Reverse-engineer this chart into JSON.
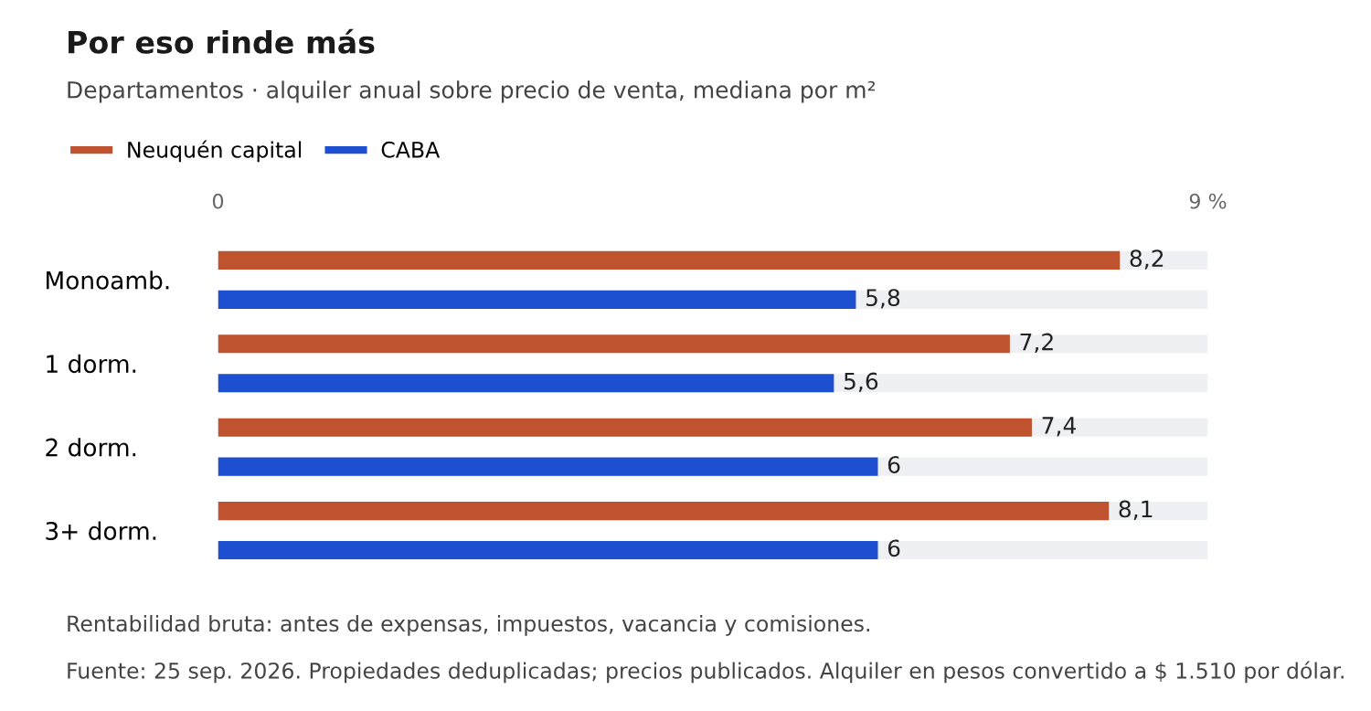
{
  "chart_data": {
    "type": "bar",
    "orientation": "horizontal",
    "title": "Por eso rinde más",
    "subtitle": "Departamentos · alquiler anual sobre precio de venta, mediana por m²",
    "categories": [
      "Monoamb.",
      "1 dorm.",
      "2 dorm.",
      "3+ dorm."
    ],
    "series": [
      {
        "name": "Neuquén capital",
        "color": "#c0532f",
        "values": [
          8.2,
          7.2,
          7.4,
          8.1
        ],
        "value_labels": [
          "8,2",
          "7,2",
          "7,4",
          "8,1"
        ]
      },
      {
        "name": "CABA",
        "color": "#1f4fd1",
        "values": [
          5.8,
          5.6,
          6,
          6
        ],
        "value_labels": [
          "5,8",
          "5,6",
          "6",
          "6"
        ]
      }
    ],
    "xlim": [
      0,
      9
    ],
    "xticks": [
      0,
      {
        "value": 9,
        "label": "9 %"
      }
    ],
    "grid": false,
    "legend": "top left",
    "annotations": [
      "Rentabilidad bruta: antes de expensas, impuestos, vacancia y comisiones.",
      "Fuente: 25 sep. 2026. Propiedades deduplicadas; precios publicados. Alquiler en pesos convertido a $ 1.510 por dólar."
    ]
  }
}
